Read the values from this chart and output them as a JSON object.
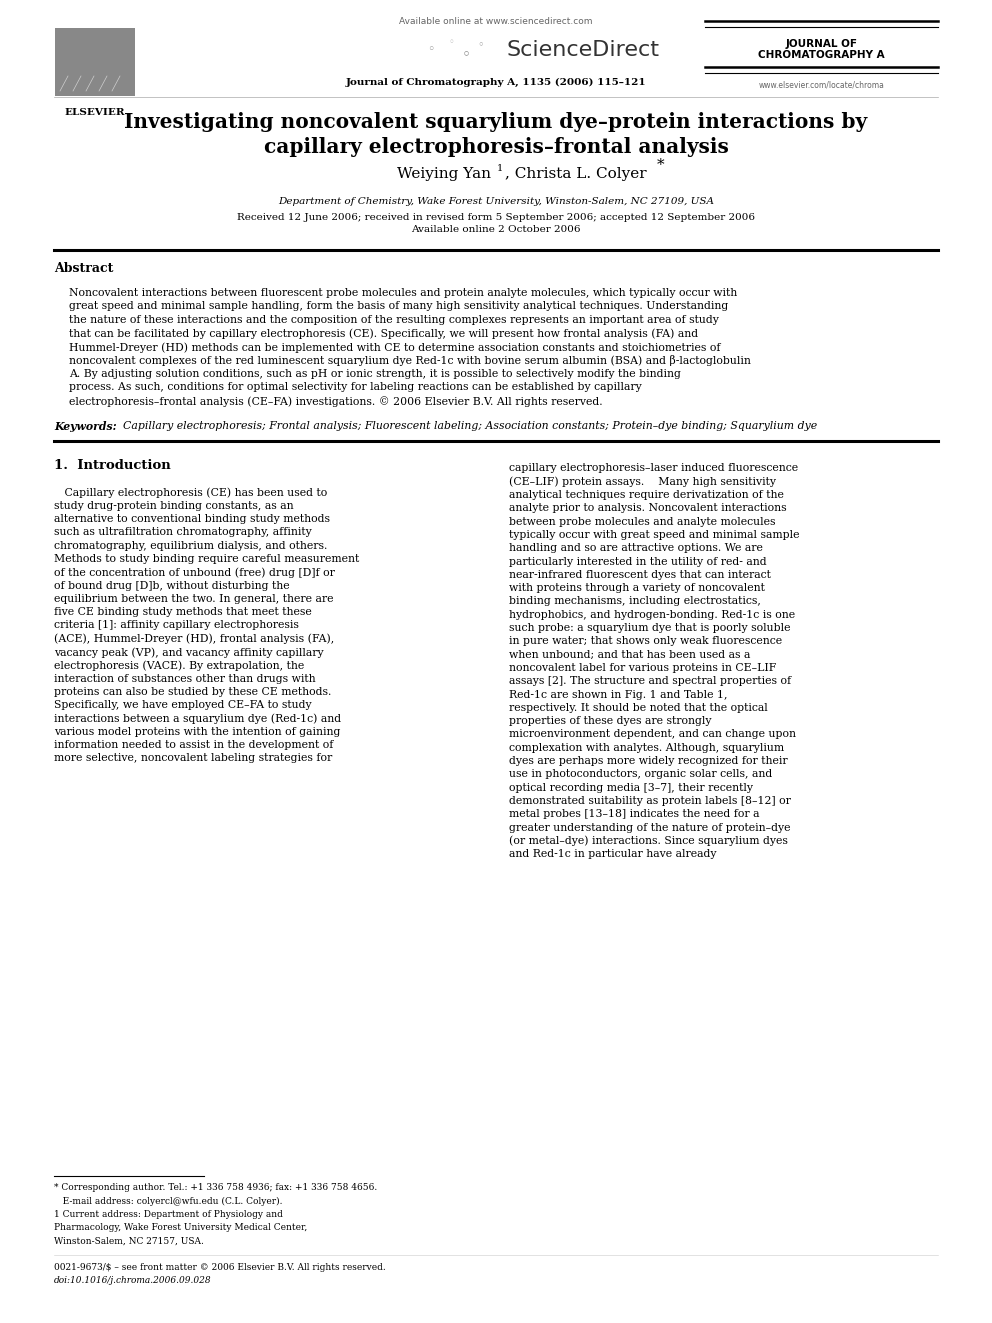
{
  "page_width": 9.92,
  "page_height": 13.23,
  "bg_color": "#ffffff",
  "header": {
    "available_online": "Available online at www.sciencedirect.com",
    "sciencedirect": "ScienceDirect",
    "journal_line": "Journal of Chromatography A, 1135 (2006) 115–121",
    "journal_name_line1": "JOURNAL OF",
    "journal_name_line2": "CHROMATOGRAPHY A",
    "website": "www.elsevier.com/locate/chroma",
    "elsevier": "ELSEVIER"
  },
  "title_line1": "Investigating noncovalent squarylium dye–protein interactions by",
  "title_line2": "capillary electrophoresis–frontal analysis",
  "author_part1": "Weiying Yan ",
  "author_sup1": "1",
  "author_part2": ", Christa L. Colyer",
  "author_sup2": "*",
  "affiliation": "Department of Chemistry, Wake Forest University, Winston-Salem, NC 27109, USA",
  "received": "Received 12 June 2006; received in revised form 5 September 2006; accepted 12 September 2006",
  "available": "Available online 2 October 2006",
  "abstract_title": "Abstract",
  "abstract_body": "Noncovalent interactions between fluorescent probe molecules and protein analyte molecules, which typically occur with great speed and minimal sample handling, form the basis of many high sensitivity analytical techniques. Understanding the nature of these interactions and the composition of the resulting complexes represents an important area of study that can be facilitated by capillary electrophoresis (CE). Specifically, we will present how frontal analysis (FA) and Hummel-Dreyer (HD) methods can be implemented with CE to determine association constants and stoichiometries of noncovalent complexes of the red luminescent squarylium dye Red-1c with bovine serum albumin (BSA) and β-lactoglobulin A. By adjusting solution conditions, such as pH or ionic strength, it is possible to selectively modify the binding process. As such, conditions for optimal selectivity for labeling reactions can be established by capillary electrophoresis–frontal analysis (CE–FA) investigations.\n© 2006 Elsevier B.V. All rights reserved.",
  "keywords_label": "Keywords:",
  "keywords_body": "  Capillary electrophoresis; Frontal analysis; Fluorescent labeling; Association constants; Protein–dye binding; Squarylium dye",
  "section1_title": "1.  Introduction",
  "col1_text": "   Capillary electrophoresis (CE) has been used to study drug-protein binding constants, as an alternative to conventional binding study methods such as ultrafiltration chromatography, affinity chromatography, equilibrium dialysis, and others. Methods to study binding require careful measurement of the concentration of unbound (free) drug [D]f or of bound drug [D]b, without disturbing the equilibrium between the two. In general, there are five CE binding study methods that meet these criteria [1]: affinity capillary electrophoresis (ACE), Hummel-Dreyer (HD), frontal analysis (FA), vacancy peak (VP), and vacancy affinity capillary electrophoresis (VACE). By extrapolation, the interaction of substances other than drugs with proteins can also be studied by these CE methods. Specifically, we have employed CE–FA to study interactions between a squarylium dye (Red-1c) and various model proteins with the intention of gaining information needed to assist in the development of more selective, noncovalent labeling strategies for",
  "col2_text": "capillary electrophoresis–laser induced fluorescence (CE–LIF) protein assays.\n   Many high sensitivity analytical techniques require derivatization of the analyte prior to analysis. Noncovalent interactions between probe molecules and analyte molecules typically occur with great speed and minimal sample handling and so are attractive options. We are particularly interested in the utility of red- and near-infrared fluorescent dyes that can interact with proteins through a variety of noncovalent binding mechanisms, including electrostatics, hydrophobics, and hydrogen-bonding. Red-1c is one such probe: a squarylium dye that is poorly soluble in pure water; that shows only weak fluorescence when unbound; and that has been used as a noncovalent label for various proteins in CE–LIF assays [2]. The structure and spectral properties of Red-1c are shown in Fig. 1 and Table 1, respectively. It should be noted that the optical properties of these dyes are strongly microenvironment dependent, and can change upon complexation with analytes. Although, squarylium dyes are perhaps more widely recognized for their use in photoconductors, organic solar cells, and optical recording media [3–7], their recently demonstrated suitability as protein labels [8–12] or metal probes [13–18] indicates the need for a greater understanding of the nature of protein–dye (or metal–dye) interactions. Since squarylium dyes and Red-1c in particular have already",
  "footnote_sep_note": "* Corresponding author. Tel.: +1 336 758 4936; fax: +1 336 758 4656.",
  "footnote_email": "   E-mail address: colyercl@wfu.edu (C.L. Colyer).",
  "footnote_1": "1 Current address: Department of Physiology and Pharmacology, Wake Forest University Medical Center, Winston-Salem, NC 27157, USA.",
  "bottom_line1": "0021-9673/$ – see front matter © 2006 Elsevier B.V. All rights reserved.",
  "bottom_line2": "doi:10.1016/j.chroma.2006.09.028"
}
